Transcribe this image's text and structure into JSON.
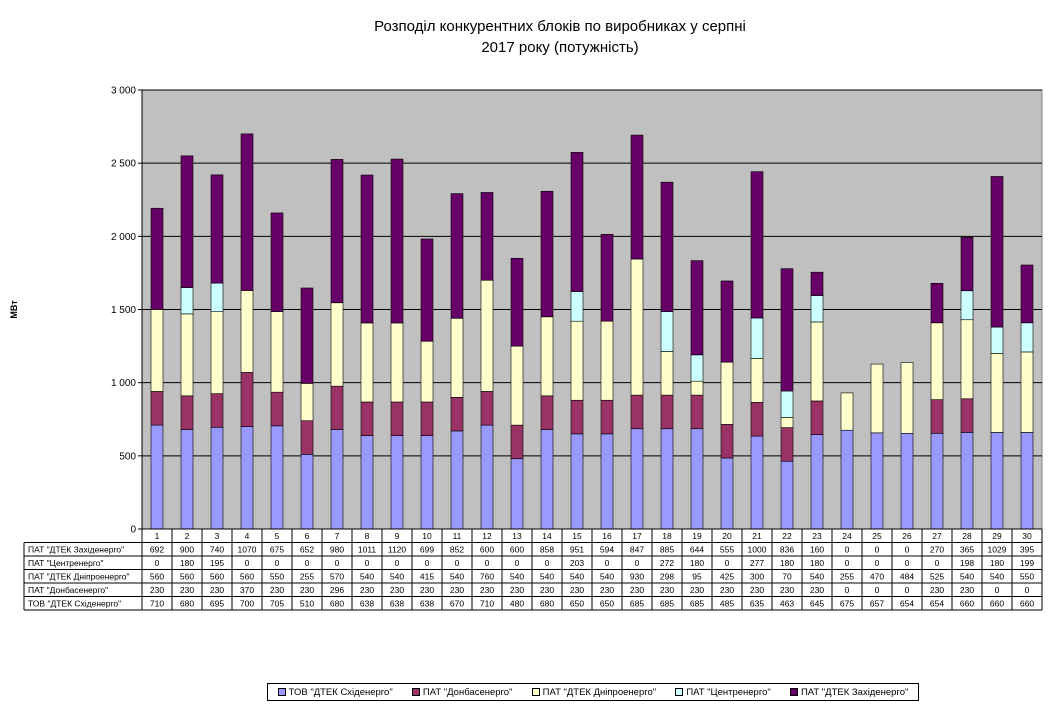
{
  "colors": {
    "plot_background": "#c0c0c0",
    "gridline": "#000000"
  },
  "chart_data": {
    "type": "bar",
    "stacked": true,
    "title": [
      "Розподіл конкурентних  блоків по виробниках  у серпні",
      "2017 року  (потужність)"
    ],
    "ylabel": "МВт",
    "ylim": [
      0,
      3000
    ],
    "yticks": [
      0,
      500,
      1000,
      1500,
      2000,
      2500,
      3000
    ],
    "ytick_labels": [
      "0",
      "500",
      "1 000",
      "1 500",
      "2 000",
      "2 500",
      "3 000"
    ],
    "grid": true,
    "legend_position": "bottom",
    "categories": [
      "1",
      "2",
      "3",
      "4",
      "5",
      "6",
      "7",
      "8",
      "9",
      "10",
      "11",
      "12",
      "13",
      "14",
      "15",
      "16",
      "17",
      "18",
      "19",
      "20",
      "21",
      "22",
      "23",
      "24",
      "25",
      "26",
      "27",
      "28",
      "29",
      "30"
    ],
    "series": [
      {
        "name": "ТОВ \"ДТЕК Східенерго\"",
        "color": "#9999ff",
        "values": [
          710,
          680,
          695,
          700,
          705,
          510,
          680,
          638,
          638,
          638,
          670,
          710,
          480,
          680,
          650,
          650,
          685,
          685,
          685,
          485,
          635,
          463,
          645,
          675,
          657,
          654,
          654,
          660,
          660,
          660
        ]
      },
      {
        "name": "ПАТ \"Донбасенерго\"",
        "color": "#993366",
        "values": [
          230,
          230,
          230,
          370,
          230,
          230,
          296,
          230,
          230,
          230,
          230,
          230,
          230,
          230,
          230,
          230,
          230,
          230,
          230,
          230,
          230,
          230,
          230,
          0,
          0,
          0,
          230,
          230,
          0,
          0
        ]
      },
      {
        "name": "ПАТ \"ДТЕК Дніпроенерго\"",
        "color": "#ffffcc",
        "values": [
          560,
          560,
          560,
          560,
          550,
          255,
          570,
          540,
          540,
          415,
          540,
          760,
          540,
          540,
          540,
          540,
          930,
          298,
          95,
          425,
          300,
          70,
          540,
          255,
          470,
          484,
          525,
          540,
          540,
          550
        ]
      },
      {
        "name": "ПАТ \"Центренерго\"",
        "color": "#ccffff",
        "values": [
          0,
          180,
          195,
          0,
          0,
          0,
          0,
          0,
          0,
          0,
          0,
          0,
          0,
          0,
          203,
          0,
          0,
          272,
          180,
          0,
          277,
          180,
          180,
          0,
          0,
          0,
          0,
          198,
          180,
          199
        ]
      },
      {
        "name": "ПАТ \"ДТЕК Західенерго\"",
        "color": "#660066",
        "values": [
          692,
          900,
          740,
          1070,
          675,
          652,
          980,
          1011,
          1120,
          699,
          852,
          600,
          600,
          858,
          951,
          594,
          847,
          885,
          644,
          555,
          1000,
          836,
          160,
          0,
          0,
          0,
          270,
          365,
          1029,
          395
        ]
      }
    ],
    "table_row_order": [
      4,
      3,
      2,
      1,
      0
    ],
    "table_row_labels": [
      "ПАТ \"ДТЕК Західенерго\"",
      "ПАТ \"Центренерго\"",
      "ПАТ \"ДТЕК Дніпроенерго\"",
      "ПАТ \"Донбасенерго\"",
      "ТОВ \"ДТЕК Східенерго\""
    ],
    "legend_labels": [
      "ТОВ \"ДТЕК Східенерго\"",
      "ПАТ \"Донбасенерго\"",
      "ПАТ \"ДТЕК Дніпроенерго\"",
      "ПАТ \"Центренерго\"",
      "ПАТ \"ДТЕК Західенерго\""
    ]
  }
}
